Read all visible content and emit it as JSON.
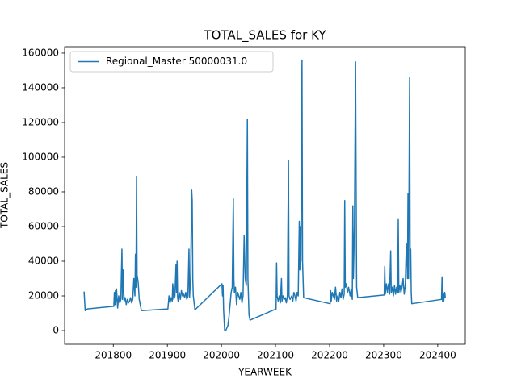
{
  "chart_data": {
    "type": "line",
    "title": "TOTAL_SALES for KY",
    "x_label": "YEARWEEK",
    "y_label": "TOTAL_SALES",
    "x": [
      201746,
      201748,
      201752,
      201801,
      201802,
      201803,
      201804,
      201805,
      201806,
      201808,
      201810,
      201812,
      201814,
      201816,
      201817,
      201818,
      201820,
      201822,
      201824,
      201826,
      201828,
      201830,
      201832,
      201834,
      201836,
      201838,
      201840,
      201841,
      201842,
      201843,
      201844,
      201846,
      201848,
      201852,
      201901,
      201903,
      201905,
      201907,
      201909,
      201910,
      201912,
      201914,
      201916,
      201917,
      201918,
      201919,
      201920,
      201922,
      201924,
      201926,
      201928,
      201930,
      201932,
      201934,
      201936,
      201938,
      201940,
      201941,
      201943,
      201945,
      201946,
      201947,
      201948,
      201951,
      202001,
      202002,
      202003,
      202004,
      202006,
      202008,
      202010,
      202012,
      202014,
      202016,
      202018,
      202020,
      202022,
      202023,
      202024,
      202026,
      202028,
      202030,
      202032,
      202034,
      202036,
      202038,
      202040,
      202042,
      202044,
      202046,
      202048,
      202049,
      202051,
      202053,
      202101,
      202102,
      202103,
      202105,
      202107,
      202109,
      202111,
      202112,
      202114,
      202116,
      202118,
      202120,
      202122,
      202124,
      202125,
      202127,
      202130,
      202132,
      202134,
      202136,
      202138,
      202140,
      202142,
      202144,
      202145,
      202146,
      202147,
      202149,
      202150,
      202152,
      202201,
      202202,
      202203,
      202205,
      202207,
      202209,
      202211,
      202213,
      202215,
      202217,
      202219,
      202221,
      202223,
      202225,
      202227,
      202228,
      202229,
      202231,
      202233,
      202235,
      202238,
      202240,
      202242,
      202243,
      202244,
      202246,
      202248,
      202250,
      202252,
      202301,
      202302,
      202303,
      202305,
      202307,
      202309,
      202311,
      202313,
      202314,
      202316,
      202318,
      202320,
      202322,
      202324,
      202326,
      202327,
      202328,
      202330,
      202332,
      202334,
      202336,
      202338,
      202340,
      202342,
      202344,
      202345,
      202346,
      202348,
      202349,
      202350,
      202351,
      202352,
      202407,
      202408,
      202409,
      202410,
      202411,
      202412,
      202413,
      202414
    ],
    "series": [
      {
        "name": "Regional_Master 50000031.0",
        "color": "#1f77b4",
        "values": [
          22500,
          11500,
          12500,
          14000,
          22000,
          15000,
          23000,
          17000,
          24000,
          13000,
          20000,
          16000,
          18000,
          47000,
          18000,
          35000,
          17000,
          19000,
          15000,
          18000,
          16000,
          17000,
          19000,
          16000,
          18000,
          30000,
          20000,
          44000,
          25000,
          89000,
          32000,
          28000,
          18000,
          11500,
          12500,
          20000,
          16000,
          19000,
          17000,
          27000,
          18000,
          20000,
          38000,
          22000,
          40000,
          19000,
          17000,
          22000,
          18000,
          23000,
          20000,
          21000,
          19000,
          22000,
          18000,
          20000,
          47000,
          19000,
          30000,
          81000,
          75000,
          30000,
          20000,
          12000,
          27000,
          20000,
          26000,
          12000,
          0,
          0,
          1500,
          3000,
          8000,
          15000,
          22000,
          25000,
          76000,
          30000,
          22000,
          25000,
          15000,
          22000,
          20000,
          18000,
          22000,
          16000,
          20000,
          55000,
          30000,
          26000,
          122000,
          30000,
          9000,
          6000,
          12500,
          39000,
          20000,
          17000,
          20000,
          16000,
          30000,
          17000,
          20000,
          18000,
          19000,
          16000,
          20000,
          98000,
          20000,
          18000,
          20000,
          17000,
          22000,
          20000,
          17000,
          22000,
          20000,
          63000,
          35000,
          60000,
          40000,
          156000,
          40000,
          19000,
          15500,
          23000,
          17000,
          22000,
          20000,
          18000,
          25000,
          17000,
          20000,
          17000,
          22000,
          19000,
          24000,
          18000,
          21000,
          75000,
          25000,
          27000,
          22000,
          25000,
          20000,
          24000,
          18000,
          72000,
          30000,
          60000,
          155000,
          25000,
          19000,
          20500,
          37000,
          21000,
          27000,
          22000,
          27000,
          21000,
          46000,
          22000,
          25000,
          20000,
          26000,
          21000,
          25000,
          22000,
          64000,
          22000,
          26000,
          22000,
          25000,
          30000,
          21000,
          26000,
          50000,
          30000,
          79000,
          30000,
          146000,
          35000,
          47000,
          22000,
          15500,
          18000,
          31000,
          17000,
          22000,
          17000,
          20000,
          22000,
          19000
        ]
      }
    ],
    "xlim": [
      201710,
      202451
    ],
    "ylim": [
      -7900,
      163700
    ],
    "xticks": [
      201800,
      201900,
      202000,
      202100,
      202200,
      202300,
      202400
    ],
    "yticks": [
      0,
      20000,
      40000,
      60000,
      80000,
      100000,
      120000,
      140000,
      160000
    ],
    "grid": false,
    "legend": "upper-left"
  }
}
